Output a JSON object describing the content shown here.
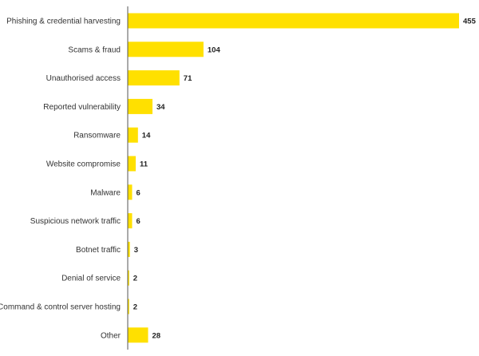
{
  "chart_data": {
    "type": "bar",
    "orientation": "horizontal",
    "title": "",
    "xlabel": "",
    "ylabel": "",
    "categories": [
      "Phishing & credential harvesting",
      "Scams & fraud",
      "Unauthorised access",
      "Reported vulnerability",
      "Ransomware",
      "Website compromise",
      "Malware",
      "Suspicious network traffic",
      "Botnet traffic",
      "Denial of service",
      "Command & control server hosting",
      "Other"
    ],
    "values": [
      455,
      104,
      71,
      34,
      14,
      11,
      6,
      6,
      3,
      2,
      2,
      28
    ],
    "xlim": [
      0,
      455
    ],
    "grid": false,
    "legend": "none",
    "bar_color": "#FFE000",
    "axis_color": "#555555",
    "data_labels": true
  }
}
